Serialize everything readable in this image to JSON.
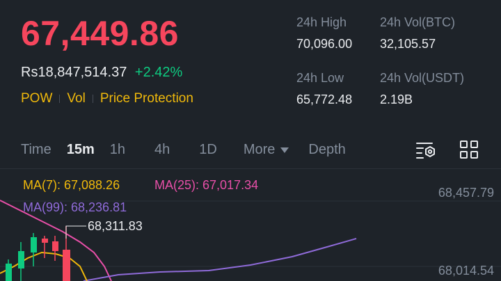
{
  "ticker": {
    "last_price": "67,449.86",
    "fiat_price": "Rs18,847,514.37",
    "change_pct": "+2.42%",
    "colors": {
      "down": "#f6465d",
      "up": "#0ecb81",
      "accent": "#f0b90b"
    }
  },
  "tags": [
    "POW",
    "Vol",
    "Price Protection"
  ],
  "stats": {
    "high_label": "24h High",
    "high_value": "70,096.00",
    "vol_btc_label": "24h Vol(BTC)",
    "vol_btc_value": "32,105.57",
    "low_label": "24h Low",
    "low_value": "65,772.48",
    "vol_usdt_label": "24h Vol(USDT)",
    "vol_usdt_value": "2.19B"
  },
  "tabs": {
    "time": "Time",
    "m15": "15m",
    "h1": "1h",
    "h4": "4h",
    "d1": "1D",
    "more": "More",
    "depth": "Depth",
    "active": "15m"
  },
  "indicators": {
    "ma7": "MA(7): 67,088.26",
    "ma25": "MA(25): 67,017.34",
    "ma99": "MA(99): 68,236.81"
  },
  "chart": {
    "axis_top": "68,457.79",
    "axis_bottom": "68,014.54",
    "high_marker": "68,311.83"
  },
  "icons": {
    "settings": "chart-settings-icon",
    "grid": "grid-layout-icon"
  }
}
